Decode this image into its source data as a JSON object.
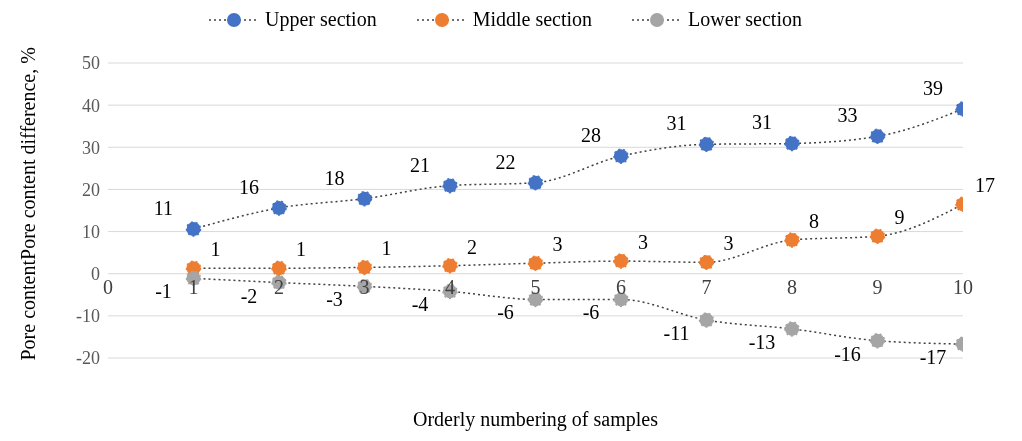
{
  "chart_data": {
    "type": "line",
    "xlabel": "Orderly numbering of samples",
    "ylabel": "Pore contentPore content difference, %",
    "x": [
      1,
      2,
      3,
      4,
      5,
      6,
      7,
      8,
      9,
      10
    ],
    "series": [
      {
        "name": "Upper section",
        "color": "#4472c4",
        "values": [
          10.6,
          15.6,
          17.8,
          20.9,
          21.6,
          27.9,
          30.7,
          30.9,
          32.6,
          39.1
        ],
        "value_labels": [
          "11",
          "16",
          "18",
          "21",
          "22",
          "28",
          "31",
          "31",
          "33",
          "39"
        ]
      },
      {
        "name": "Middle section",
        "color": "#ed7d31",
        "values": [
          1.3,
          1.3,
          1.5,
          1.9,
          2.5,
          3.0,
          2.7,
          8.0,
          8.9,
          16.5
        ],
        "value_labels": [
          "1",
          "1",
          "1",
          "2",
          "3",
          "3",
          "3",
          "8",
          "9",
          "17"
        ]
      },
      {
        "name": "Lower section",
        "color": "#a5a5a5",
        "values": [
          -1.1,
          -2.1,
          -3.0,
          -4.2,
          -6.1,
          -6.1,
          -11.0,
          -13.1,
          -15.9,
          -16.7
        ],
        "value_labels": [
          "-1",
          "-2",
          "-3",
          "-4",
          "-6",
          "-6",
          "-11",
          "-13",
          "-16",
          "-17"
        ]
      }
    ],
    "xlim": [
      0,
      10
    ],
    "xticks": [
      0,
      1,
      2,
      3,
      4,
      5,
      6,
      7,
      8,
      9,
      10
    ],
    "ylim": [
      -20,
      50
    ],
    "yticks": [
      -20,
      -10,
      0,
      10,
      20,
      30,
      40,
      50
    ],
    "grid": "y",
    "legend": "top",
    "marker": "circle",
    "line_style": "dotted"
  }
}
